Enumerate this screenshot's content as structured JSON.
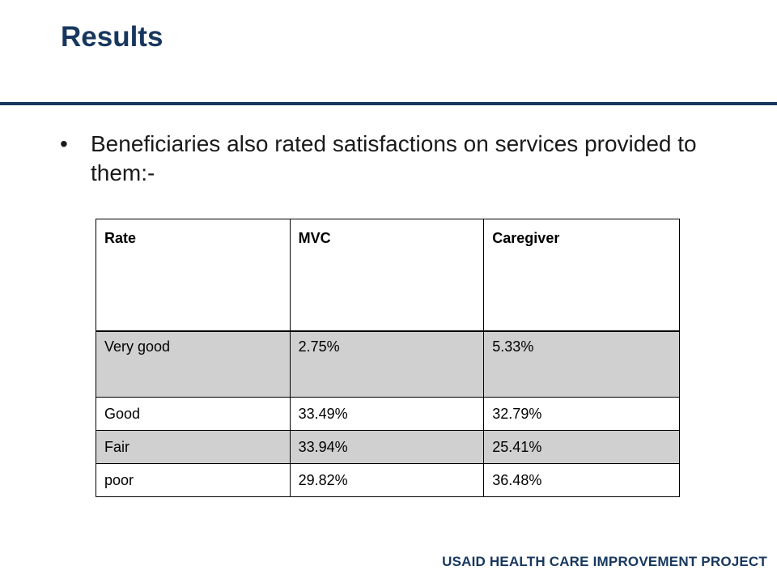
{
  "slide": {
    "title": "Results",
    "bullet": "Beneficiaries also  rated satisfactions on services provided to them:-",
    "footer": "USAID HEALTH CARE IMPROVEMENT PROJECT"
  },
  "table": {
    "headers": [
      "Rate",
      "MVC",
      "Caregiver"
    ],
    "rows": [
      [
        "Very good",
        "2.75%",
        "5.33%"
      ],
      [
        "Good",
        "33.49%",
        "32.79%"
      ],
      [
        "Fair",
        "33.94%",
        "25.41%"
      ],
      [
        "poor",
        "29.82%",
        "36.48%"
      ]
    ]
  },
  "colors": {
    "title": "#17375e",
    "shaded_row": "#d0d0d0"
  }
}
